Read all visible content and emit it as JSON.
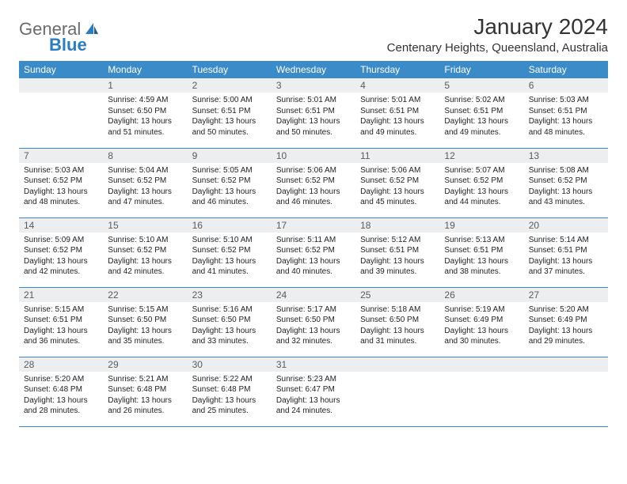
{
  "logo": {
    "text1": "General",
    "text2": "Blue"
  },
  "title": "January 2024",
  "location": "Centenary Heights, Queensland, Australia",
  "colors": {
    "header_bg": "#3b8bc9",
    "header_text": "#ffffff",
    "daynum_bg": "#eceef0",
    "border": "#3b8bc9",
    "logo_gray": "#6b6b6b",
    "logo_blue": "#2a7dc0"
  },
  "day_headers": [
    "Sunday",
    "Monday",
    "Tuesday",
    "Wednesday",
    "Thursday",
    "Friday",
    "Saturday"
  ],
  "weeks": [
    [
      {
        "n": "",
        "sunrise": "",
        "sunset": "",
        "daylight": ""
      },
      {
        "n": "1",
        "sunrise": "4:59 AM",
        "sunset": "6:50 PM",
        "daylight": "13 hours and 51 minutes."
      },
      {
        "n": "2",
        "sunrise": "5:00 AM",
        "sunset": "6:51 PM",
        "daylight": "13 hours and 50 minutes."
      },
      {
        "n": "3",
        "sunrise": "5:01 AM",
        "sunset": "6:51 PM",
        "daylight": "13 hours and 50 minutes."
      },
      {
        "n": "4",
        "sunrise": "5:01 AM",
        "sunset": "6:51 PM",
        "daylight": "13 hours and 49 minutes."
      },
      {
        "n": "5",
        "sunrise": "5:02 AM",
        "sunset": "6:51 PM",
        "daylight": "13 hours and 49 minutes."
      },
      {
        "n": "6",
        "sunrise": "5:03 AM",
        "sunset": "6:51 PM",
        "daylight": "13 hours and 48 minutes."
      }
    ],
    [
      {
        "n": "7",
        "sunrise": "5:03 AM",
        "sunset": "6:52 PM",
        "daylight": "13 hours and 48 minutes."
      },
      {
        "n": "8",
        "sunrise": "5:04 AM",
        "sunset": "6:52 PM",
        "daylight": "13 hours and 47 minutes."
      },
      {
        "n": "9",
        "sunrise": "5:05 AM",
        "sunset": "6:52 PM",
        "daylight": "13 hours and 46 minutes."
      },
      {
        "n": "10",
        "sunrise": "5:06 AM",
        "sunset": "6:52 PM",
        "daylight": "13 hours and 46 minutes."
      },
      {
        "n": "11",
        "sunrise": "5:06 AM",
        "sunset": "6:52 PM",
        "daylight": "13 hours and 45 minutes."
      },
      {
        "n": "12",
        "sunrise": "5:07 AM",
        "sunset": "6:52 PM",
        "daylight": "13 hours and 44 minutes."
      },
      {
        "n": "13",
        "sunrise": "5:08 AM",
        "sunset": "6:52 PM",
        "daylight": "13 hours and 43 minutes."
      }
    ],
    [
      {
        "n": "14",
        "sunrise": "5:09 AM",
        "sunset": "6:52 PM",
        "daylight": "13 hours and 42 minutes."
      },
      {
        "n": "15",
        "sunrise": "5:10 AM",
        "sunset": "6:52 PM",
        "daylight": "13 hours and 42 minutes."
      },
      {
        "n": "16",
        "sunrise": "5:10 AM",
        "sunset": "6:52 PM",
        "daylight": "13 hours and 41 minutes."
      },
      {
        "n": "17",
        "sunrise": "5:11 AM",
        "sunset": "6:52 PM",
        "daylight": "13 hours and 40 minutes."
      },
      {
        "n": "18",
        "sunrise": "5:12 AM",
        "sunset": "6:51 PM",
        "daylight": "13 hours and 39 minutes."
      },
      {
        "n": "19",
        "sunrise": "5:13 AM",
        "sunset": "6:51 PM",
        "daylight": "13 hours and 38 minutes."
      },
      {
        "n": "20",
        "sunrise": "5:14 AM",
        "sunset": "6:51 PM",
        "daylight": "13 hours and 37 minutes."
      }
    ],
    [
      {
        "n": "21",
        "sunrise": "5:15 AM",
        "sunset": "6:51 PM",
        "daylight": "13 hours and 36 minutes."
      },
      {
        "n": "22",
        "sunrise": "5:15 AM",
        "sunset": "6:50 PM",
        "daylight": "13 hours and 35 minutes."
      },
      {
        "n": "23",
        "sunrise": "5:16 AM",
        "sunset": "6:50 PM",
        "daylight": "13 hours and 33 minutes."
      },
      {
        "n": "24",
        "sunrise": "5:17 AM",
        "sunset": "6:50 PM",
        "daylight": "13 hours and 32 minutes."
      },
      {
        "n": "25",
        "sunrise": "5:18 AM",
        "sunset": "6:50 PM",
        "daylight": "13 hours and 31 minutes."
      },
      {
        "n": "26",
        "sunrise": "5:19 AM",
        "sunset": "6:49 PM",
        "daylight": "13 hours and 30 minutes."
      },
      {
        "n": "27",
        "sunrise": "5:20 AM",
        "sunset": "6:49 PM",
        "daylight": "13 hours and 29 minutes."
      }
    ],
    [
      {
        "n": "28",
        "sunrise": "5:20 AM",
        "sunset": "6:48 PM",
        "daylight": "13 hours and 28 minutes."
      },
      {
        "n": "29",
        "sunrise": "5:21 AM",
        "sunset": "6:48 PM",
        "daylight": "13 hours and 26 minutes."
      },
      {
        "n": "30",
        "sunrise": "5:22 AM",
        "sunset": "6:48 PM",
        "daylight": "13 hours and 25 minutes."
      },
      {
        "n": "31",
        "sunrise": "5:23 AM",
        "sunset": "6:47 PM",
        "daylight": "13 hours and 24 minutes."
      },
      {
        "n": "",
        "sunrise": "",
        "sunset": "",
        "daylight": ""
      },
      {
        "n": "",
        "sunrise": "",
        "sunset": "",
        "daylight": ""
      },
      {
        "n": "",
        "sunrise": "",
        "sunset": "",
        "daylight": ""
      }
    ]
  ],
  "labels": {
    "sunrise": "Sunrise:",
    "sunset": "Sunset:",
    "daylight": "Daylight:"
  }
}
